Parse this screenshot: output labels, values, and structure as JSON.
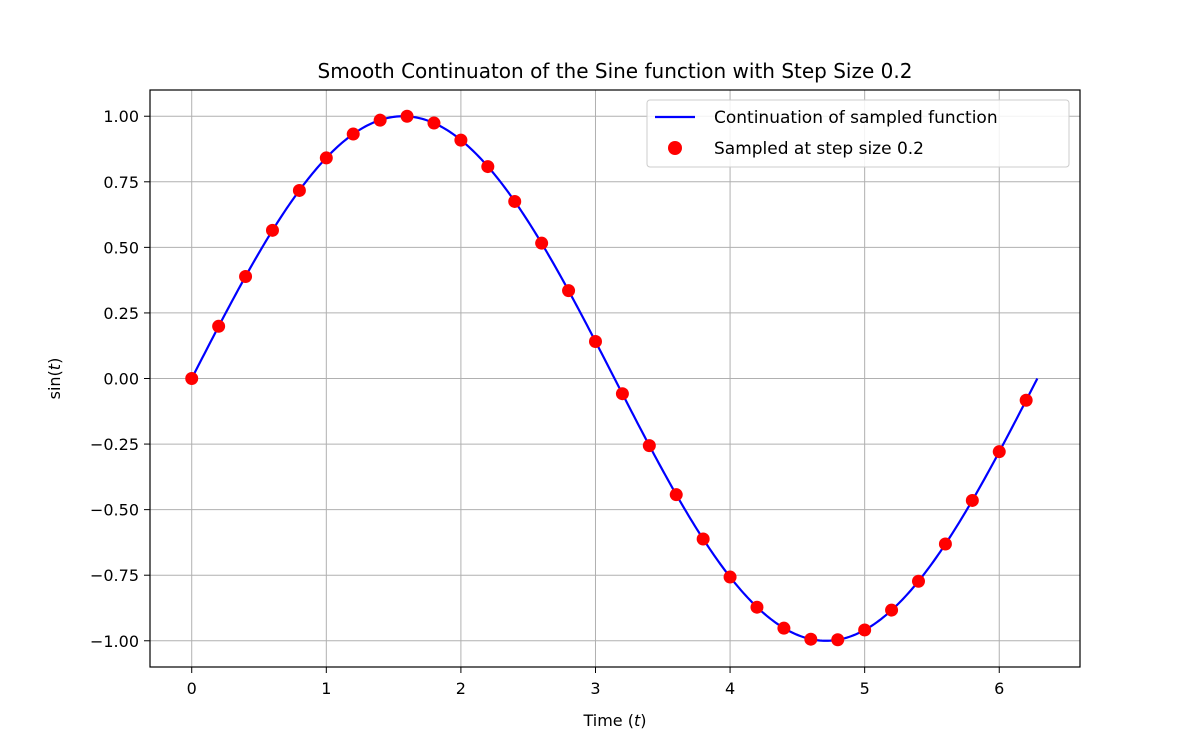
{
  "chart_data": {
    "type": "line",
    "title": "Smooth Continuaton of the Sine function with Step Size 0.2",
    "xlabel": "Time (t)",
    "ylabel": "sin(t)",
    "xlim": [
      -0.31,
      6.6
    ],
    "ylim": [
      -1.1,
      1.1
    ],
    "xticks": [
      0,
      1,
      2,
      3,
      4,
      5,
      6
    ],
    "yticks": [
      -1.0,
      -0.75,
      -0.5,
      -0.25,
      0.0,
      0.25,
      0.5,
      0.75,
      1.0
    ],
    "xtick_labels": [
      "0",
      "1",
      "2",
      "3",
      "4",
      "5",
      "6"
    ],
    "ytick_labels": [
      "−1.00",
      "−0.75",
      "−0.50",
      "−0.25",
      "0.00",
      "0.25",
      "0.50",
      "0.75",
      "1.00"
    ],
    "grid": true,
    "legend_position": "top-right",
    "series": [
      {
        "name": "Continuation of sampled function",
        "kind": "line",
        "color": "#0000ff",
        "function": "sin",
        "x_range": [
          0,
          6.283
        ]
      },
      {
        "name": "Sampled at step size 0.2",
        "kind": "scatter",
        "color": "#ff0000",
        "x": [
          0.0,
          0.2,
          0.4,
          0.6,
          0.8,
          1.0,
          1.2,
          1.4,
          1.6,
          1.8,
          2.0,
          2.2,
          2.4,
          2.6,
          2.8,
          3.0,
          3.2,
          3.4,
          3.6,
          3.8,
          4.0,
          4.2,
          4.4,
          4.6,
          4.8,
          5.0,
          5.2,
          5.4,
          5.6,
          5.8,
          6.0,
          6.2
        ],
        "y": [
          0.0,
          0.199,
          0.389,
          0.565,
          0.717,
          0.841,
          0.932,
          0.985,
          1.0,
          0.974,
          0.909,
          0.808,
          0.675,
          0.516,
          0.335,
          0.141,
          -0.058,
          -0.256,
          -0.443,
          -0.612,
          -0.757,
          -0.872,
          -0.952,
          -0.994,
          -0.996,
          -0.959,
          -0.883,
          -0.773,
          -0.631,
          -0.465,
          -0.279,
          -0.083
        ]
      }
    ]
  }
}
